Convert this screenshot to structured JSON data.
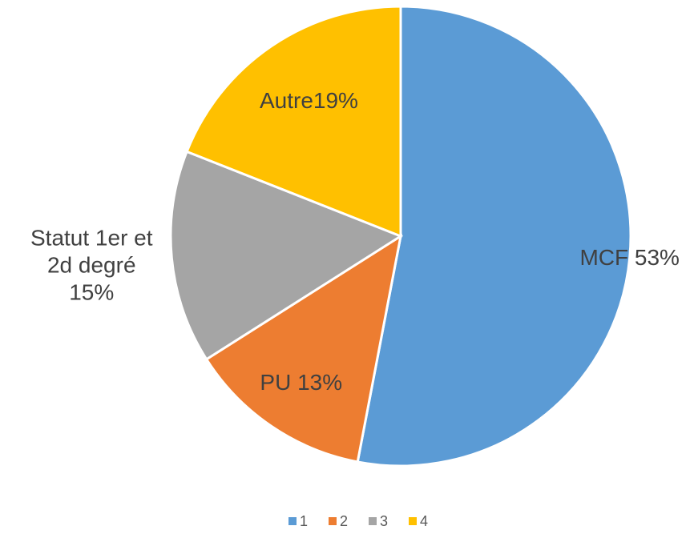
{
  "chart_data": {
    "type": "pie",
    "categories": [
      "1",
      "2",
      "3",
      "4"
    ],
    "values": [
      53,
      13,
      15,
      19
    ],
    "value_labels": [
      "MCF 53%",
      "PU 13%",
      "Statut 1er et 2d degré 15%",
      "Autre19%"
    ],
    "colors": [
      "#5b9bd5",
      "#ed7d31",
      "#a5a5a5",
      "#ffc000"
    ],
    "legend": "bottom"
  }
}
